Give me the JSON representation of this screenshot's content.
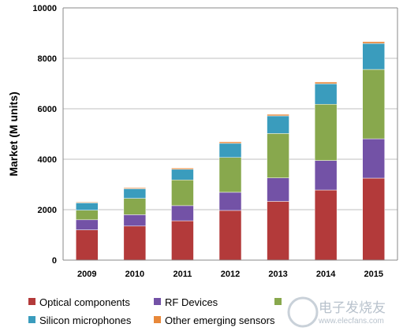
{
  "chart_data": {
    "type": "bar",
    "stacked": true,
    "title": "",
    "xlabel": "",
    "ylabel": "Market (M units)",
    "ylim": [
      0,
      10000
    ],
    "yticks": [
      "0",
      "2000",
      "4000",
      "6000",
      "8000",
      "10000"
    ],
    "grid": "horizontal",
    "legend_position": "bottom",
    "categories": [
      "2009",
      "2010",
      "2011",
      "2012",
      "2013",
      "2014",
      "2015"
    ],
    "series": [
      {
        "name": "Optical components",
        "color": "#b33a3a",
        "values": [
          1200,
          1350,
          1560,
          1970,
          2330,
          2780,
          3250
        ]
      },
      {
        "name": "RF Devices",
        "color": "#7352a6",
        "values": [
          400,
          450,
          600,
          720,
          930,
          1170,
          1560
        ]
      },
      {
        "name": "",
        "color": "#88a84d",
        "values": [
          380,
          650,
          1020,
          1380,
          1760,
          2230,
          2750
        ]
      },
      {
        "name": "Silicon microphones",
        "color": "#3a9cbd",
        "values": [
          290,
          380,
          420,
          560,
          700,
          810,
          1030
        ]
      },
      {
        "name": "Other emerging sensors",
        "color": "#e8883a",
        "values": [
          30,
          40,
          50,
          60,
          60,
          70,
          70
        ]
      }
    ]
  },
  "watermark": {
    "main": "电子发烧友",
    "sub": "www.elecfans.com"
  }
}
